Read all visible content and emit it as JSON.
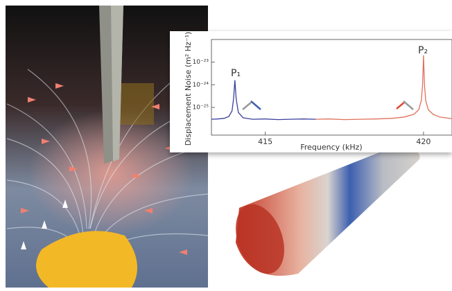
{
  "chart_data": {
    "type": "line",
    "xlabel": "Frequency (kHz)",
    "ylabel": "Displacement Noise (m² Hz⁻¹)",
    "annotations": [
      "P₁",
      "P₂"
    ],
    "xlim": [
      413.3,
      420.9
    ],
    "xticks": [
      415,
      420
    ],
    "ylim": [
      6e-27,
      1e-22
    ],
    "log_y": true,
    "yticks": [
      {
        "value": 1e-25,
        "label": "10⁻²⁵"
      },
      {
        "value": 1e-24,
        "label": "10⁻²⁴"
      },
      {
        "value": 1e-23,
        "label": "10⁻²³"
      }
    ],
    "series": [
      {
        "color": "#3b3f9c",
        "x": [
          413.3,
          413.5,
          413.7,
          413.85,
          413.95,
          414.0,
          414.04,
          414.08,
          414.15,
          414.3,
          414.6,
          415.0,
          415.4,
          415.8,
          416.2,
          416.6
        ],
        "values": [
          3e-26,
          3.1e-26,
          3.3e-26,
          4e-26,
          7e-26,
          2.5e-25,
          1.6e-24,
          2.5e-25,
          6e-26,
          3.5e-26,
          3e-26,
          3.1e-26,
          2.9e-26,
          3e-26,
          3.1e-26,
          3e-26
        ]
      },
      {
        "color": "#e0705c",
        "x": [
          416.6,
          417.0,
          417.5,
          418.0,
          418.5,
          419.0,
          419.4,
          419.7,
          419.85,
          419.93,
          419.97,
          420.0,
          420.03,
          420.07,
          420.15,
          420.3,
          420.5,
          420.9
        ],
        "values": [
          3e-26,
          3.1e-26,
          2.9e-26,
          3e-26,
          3.1e-26,
          3.3e-26,
          3.8e-26,
          5e-26,
          8e-26,
          2e-25,
          1e-24,
          2e-23,
          1e-24,
          2e-25,
          8e-26,
          5e-26,
          3.8e-26,
          3.2e-26
        ]
      }
    ]
  }
}
